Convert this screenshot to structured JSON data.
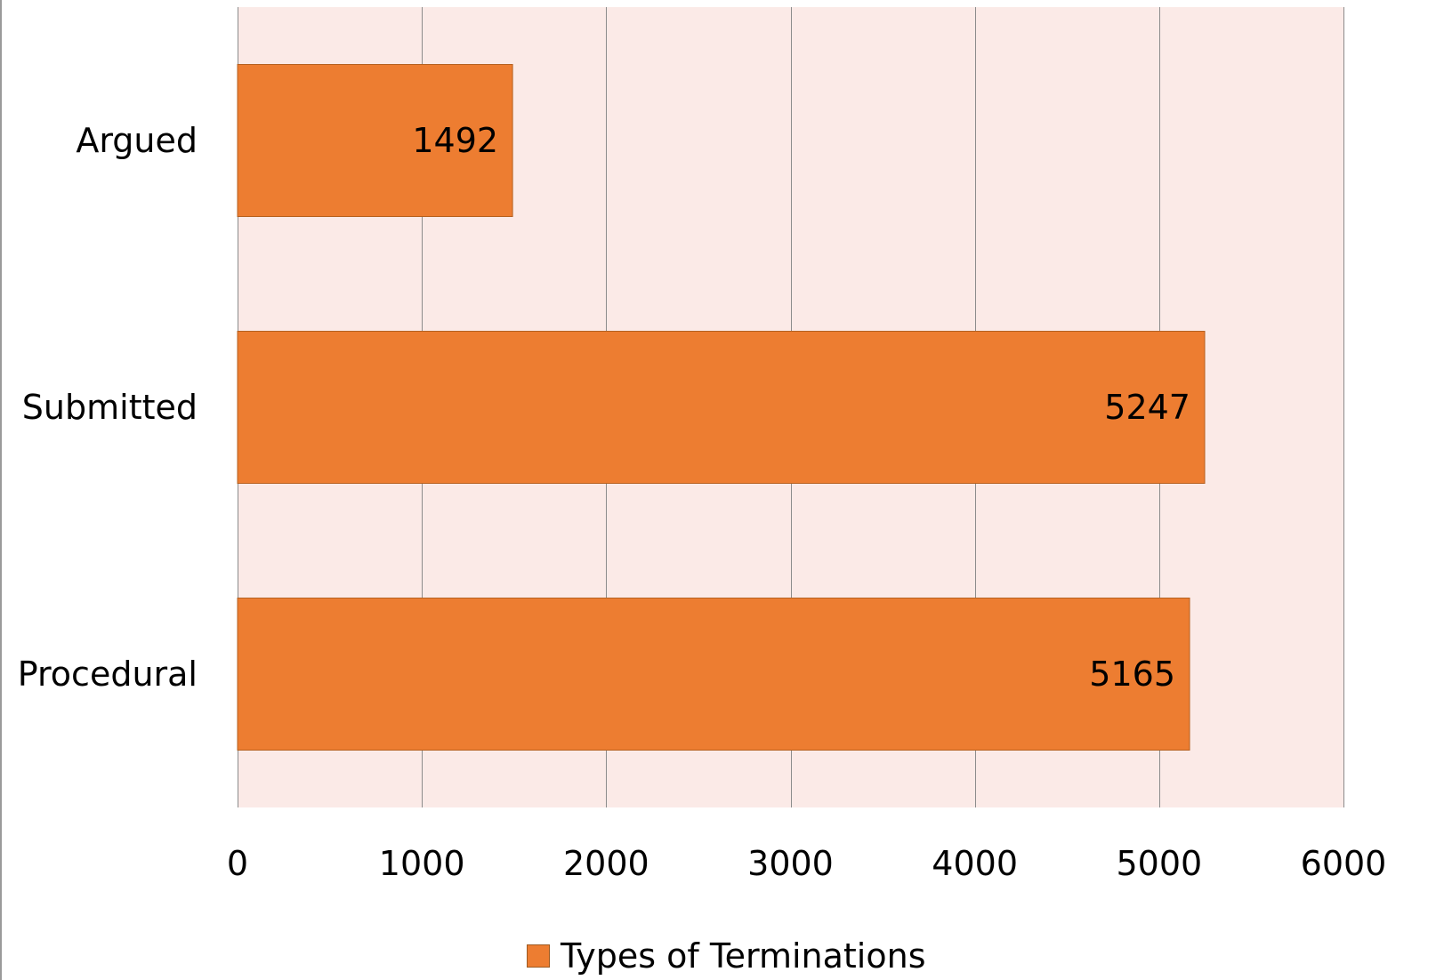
{
  "chart_data": {
    "type": "bar",
    "orientation": "horizontal",
    "categories": [
      "Argued",
      "Submitted",
      "Procedural"
    ],
    "series": [
      {
        "name": "Types of Terminations",
        "values": [
          1492,
          5247,
          5165
        ],
        "color": "#ED7D31"
      }
    ],
    "xlim": [
      0,
      6000
    ],
    "x_ticks": [
      0,
      1000,
      2000,
      3000,
      4000,
      5000,
      6000
    ],
    "grid": "vertical",
    "plot_background": "#FBEAE7",
    "legend_position": "bottom",
    "data_labels": true
  }
}
